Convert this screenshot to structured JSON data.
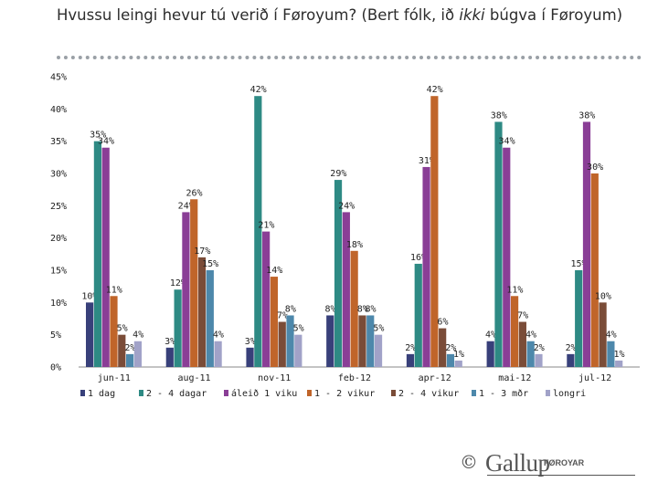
{
  "header": {
    "title_a": "Hvussu leingi hevur tú verið í Føroyum? (Bert fólk, ið ",
    "title_em": "ikki",
    "title_b": " búgva í Føroyum)"
  },
  "logo": {
    "copyright": "©",
    "brand": "Gallup",
    "sub": "FØROYAR"
  },
  "chart_data": {
    "type": "bar",
    "categories": [
      "jun-11",
      "aug-11",
      "nov-11",
      "feb-12",
      "apr-12",
      "mai-12",
      "jul-12"
    ],
    "series": [
      {
        "name": "1 dag",
        "color": "#38407a",
        "values": [
          10,
          3,
          3,
          8,
          2,
          4,
          2
        ]
      },
      {
        "name": "2 - 4 dagar",
        "color": "#2e8a84",
        "values": [
          35,
          12,
          42,
          29,
          16,
          38,
          15
        ]
      },
      {
        "name": "áleið 1 viku",
        "color": "#8a3e96",
        "values": [
          34,
          24,
          21,
          24,
          31,
          34,
          38
        ]
      },
      {
        "name": "1 - 2 vikur",
        "color": "#c0652a",
        "values": [
          11,
          26,
          14,
          18,
          42,
          11,
          30
        ]
      },
      {
        "name": "2 - 4 vikur",
        "color": "#7a4c38",
        "values": [
          5,
          17,
          7,
          8,
          6,
          7,
          10
        ]
      },
      {
        "name": "1 - 3 mðr",
        "color": "#4d88ab",
        "values": [
          2,
          15,
          8,
          8,
          2,
          4,
          4
        ]
      },
      {
        "name": "longri",
        "color": "#a1a2c8",
        "values": [
          4,
          4,
          5,
          5,
          1,
          2,
          1
        ]
      }
    ],
    "ylim": [
      0,
      45
    ],
    "yticks": [
      "0%",
      "5%",
      "10%",
      "15%",
      "20%",
      "25%",
      "30%",
      "35%",
      "40%",
      "45%"
    ],
    "value_suffix": "%",
    "legend_position": "bottom"
  }
}
